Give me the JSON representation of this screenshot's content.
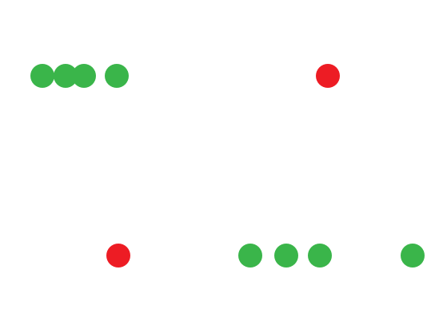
{
  "colors": {
    "background": "#ffffff",
    "green": "#3ab54a",
    "red": "#ed1c24"
  },
  "rows": [
    {
      "dots": [
        {
          "color": "green"
        },
        {
          "color": "green"
        },
        {
          "color": "green"
        },
        {
          "color": "green"
        },
        {
          "color": "red"
        }
      ]
    },
    {
      "dots": [
        {
          "color": "red"
        },
        {
          "color": "green"
        },
        {
          "color": "green"
        },
        {
          "color": "green"
        },
        {
          "color": "green"
        }
      ]
    }
  ]
}
